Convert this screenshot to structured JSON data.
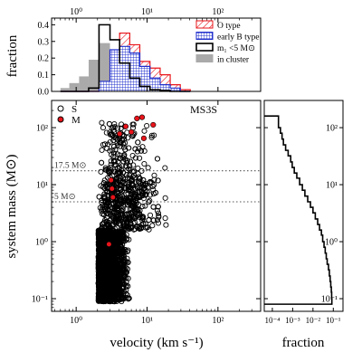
{
  "chart_data": [
    {
      "panel": "top-histogram",
      "type": "histogram",
      "ylabel": "fraction",
      "xscale": "log",
      "xlim": [
        0.45,
        400
      ],
      "ylim": [
        0,
        0.44
      ],
      "xticks": [
        {
          "value": 1,
          "label": "10⁰"
        },
        {
          "value": 10,
          "label": "10¹"
        },
        {
          "value": 100,
          "label": "10²"
        }
      ],
      "yticks": [
        {
          "value": 0.0,
          "label": "0.0"
        },
        {
          "value": 0.1,
          "label": "0.1"
        },
        {
          "value": 0.2,
          "label": "0.2"
        },
        {
          "value": 0.3,
          "label": "0.3"
        },
        {
          "value": 0.4,
          "label": "0.4"
        }
      ],
      "bin_edges": [
        0.6,
        0.8,
        1.1,
        1.5,
        2.1,
        3.0,
        4.1,
        5.7,
        7.9,
        11.0,
        15.3,
        21.2,
        29.4,
        40.7
      ],
      "series": [
        {
          "name": "in cluster",
          "style": "grey-fill",
          "color": "#aaaaaa",
          "values": [
            0.02,
            0.05,
            0.09,
            0.19,
            0.29,
            0.19,
            0.1,
            0.04,
            0.015,
            0.005,
            0.0,
            0.0,
            0.0
          ]
        },
        {
          "name": "m₁ <5 M⊙",
          "style": "black-step",
          "color": "#000000",
          "values": [
            0.0,
            0.0,
            0.0,
            0.02,
            0.4,
            0.31,
            0.17,
            0.08,
            0.03,
            0.01,
            0.005,
            0.0,
            0.0
          ]
        },
        {
          "name": "early B type",
          "style": "blue-grid",
          "color": "#1f2ecc",
          "values": [
            0.0,
            0.0,
            0.0,
            0.0,
            0.06,
            0.25,
            0.27,
            0.23,
            0.15,
            0.08,
            0.04,
            0.02,
            0.0
          ]
        },
        {
          "name": "O type",
          "style": "red-hatch",
          "color": "#e8141a",
          "values": [
            0.0,
            0.0,
            0.0,
            0.0,
            0.03,
            0.24,
            0.35,
            0.28,
            0.18,
            0.14,
            0.1,
            0.04,
            0.01
          ]
        }
      ]
    },
    {
      "panel": "main-scatter",
      "type": "scatter",
      "title": "MS3S",
      "xlabel": "velocity (km s⁻¹)",
      "ylabel": "system mass (M⊙)",
      "xscale": "log",
      "yscale": "log",
      "xlim": [
        0.45,
        400
      ],
      "ylim": [
        0.06,
        300
      ],
      "xticks": [
        {
          "value": 1,
          "label": "10⁰"
        },
        {
          "value": 10,
          "label": "10¹"
        },
        {
          "value": 100,
          "label": "10²"
        }
      ],
      "yticks": [
        {
          "value": 0.1,
          "label": "10⁻¹"
        },
        {
          "value": 1,
          "label": "10⁰"
        },
        {
          "value": 10,
          "label": "10¹"
        },
        {
          "value": 100,
          "label": "10²"
        }
      ],
      "guides": [
        {
          "value": 17.5,
          "label": "17.5 M⊙"
        },
        {
          "value": 5,
          "label": "5 M⊙"
        }
      ],
      "legend": {
        "position": "top-left",
        "entries": [
          {
            "label": "S",
            "marker": "open-circle",
            "color": "#000000"
          },
          {
            "label": "M",
            "marker": "filled-circle",
            "color": "#e8141a"
          }
        ]
      },
      "series": [
        {
          "name": "S",
          "marker": "open-circle",
          "note": "dense cloud of single stars, velocity ~2–60 km/s, mass ~0.08–150 M⊙"
        },
        {
          "name": "M",
          "marker": "filled-circle",
          "color": "#e8141a",
          "points": [
            {
              "x": 3.1,
              "y": 12
            },
            {
              "x": 3.2,
              "y": 8.5
            },
            {
              "x": 3.3,
              "y": 6
            },
            {
              "x": 2.9,
              "y": 0.9
            },
            {
              "x": 5.0,
              "y": 105
            },
            {
              "x": 6.0,
              "y": 84
            },
            {
              "x": 7.2,
              "y": 145
            },
            {
              "x": 8.5,
              "y": 152
            },
            {
              "x": 12.2,
              "y": 112
            },
            {
              "x": 9.0,
              "y": 65
            },
            {
              "x": 4.1,
              "y": 78
            }
          ]
        }
      ]
    },
    {
      "panel": "right-histogram",
      "type": "histogram",
      "orientation": "horizontal",
      "xlabel": "fraction",
      "xscale": "log",
      "yscale": "log",
      "xlim": [
        4e-05,
        0.3
      ],
      "xticks": [
        {
          "value": 0.0001,
          "label": "10⁻⁴"
        },
        {
          "value": 0.001,
          "label": "10⁻³"
        },
        {
          "value": 0.01,
          "label": "10⁻²"
        },
        {
          "value": 0.1,
          "label": "10⁻¹"
        }
      ],
      "yticks": [
        {
          "value": 0.1,
          "label": "10⁻¹"
        },
        {
          "value": 1,
          "label": "10⁰"
        },
        {
          "value": 10,
          "label": "10¹"
        },
        {
          "value": 100,
          "label": "10²"
        }
      ],
      "mass_bin_edges": [
        0.08,
        0.1,
        0.13,
        0.16,
        0.2,
        0.25,
        0.32,
        0.4,
        0.5,
        0.63,
        0.8,
        1.0,
        1.3,
        1.6,
        2.0,
        2.5,
        3.2,
        4.0,
        5.0,
        6.3,
        8.0,
        10,
        13,
        16,
        20,
        25,
        32,
        40,
        50,
        63,
        80,
        100,
        130,
        160
      ],
      "fractions": [
        0.085,
        0.083,
        0.08,
        0.075,
        0.07,
        0.064,
        0.058,
        0.05,
        0.045,
        0.04,
        0.035,
        0.03,
        0.026,
        0.021,
        0.017,
        0.013,
        0.01,
        0.0075,
        0.0055,
        0.004,
        0.003,
        0.0022,
        0.0016,
        0.0012,
        0.00095,
        0.0008,
        0.0006,
        0.00045,
        0.00035,
        0.0003,
        0.00025,
        0.0002,
        0.0002
      ]
    }
  ]
}
